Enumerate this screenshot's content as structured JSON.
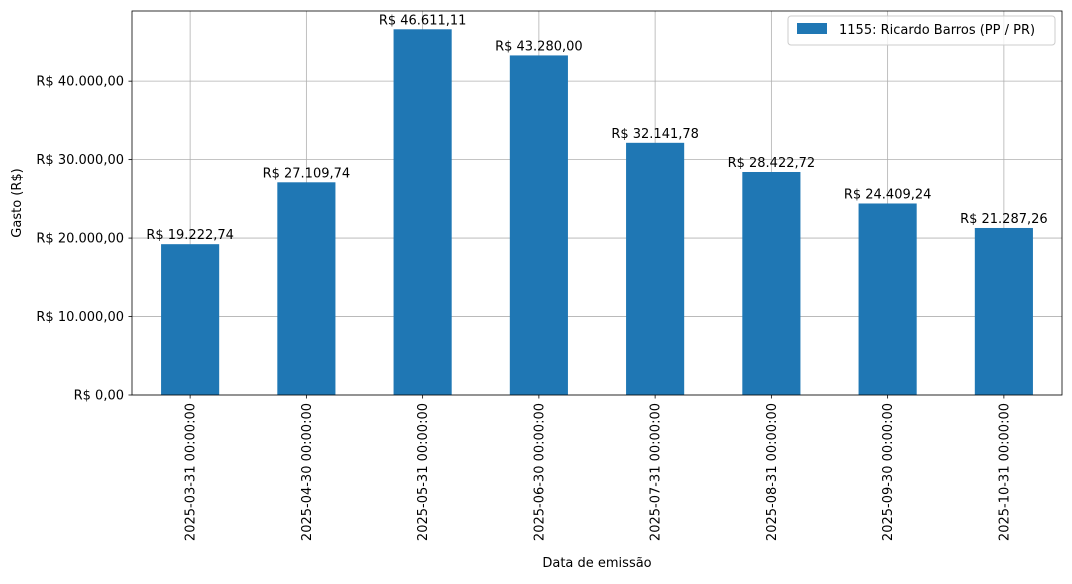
{
  "chart_data": {
    "type": "bar",
    "categories": [
      "2025-03-31 00:00:00",
      "2025-04-30 00:00:00",
      "2025-05-31 00:00:00",
      "2025-06-30 00:00:00",
      "2025-07-31 00:00:00",
      "2025-08-31 00:00:00",
      "2025-09-30 00:00:00",
      "2025-10-31 00:00:00"
    ],
    "series": [
      {
        "name": "1155: Ricardo Barros (PP / PR)",
        "values": [
          19222.74,
          27109.74,
          46611.11,
          43280.0,
          32141.78,
          28422.72,
          24409.24,
          21287.26
        ],
        "labels": [
          "R$ 19.222,74",
          "R$ 27.109,74",
          "R$ 46.611,11",
          "R$ 43.280,00",
          "R$ 32.141,78",
          "R$ 28.422,72",
          "R$ 24.409,24",
          "R$ 21.287,26"
        ],
        "color": "#1f77b4"
      }
    ],
    "xlabel": "Data de emissão",
    "ylabel": "Gasto (R$)",
    "ylim": [
      0,
      48942
    ],
    "yticks": [
      0,
      10000,
      20000,
      30000,
      40000
    ],
    "ytick_labels": [
      "R$ 0,00",
      "R$ 10.000,00",
      "R$ 20.000,00",
      "R$ 30.000,00",
      "R$ 40.000,00"
    ],
    "grid": true,
    "legend_position": "top-right"
  }
}
